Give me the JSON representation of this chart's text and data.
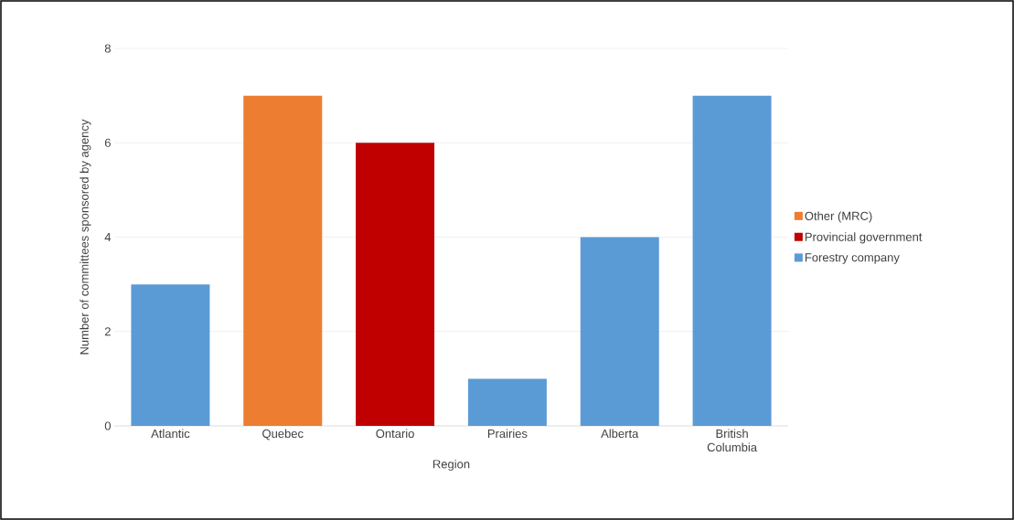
{
  "chart_data": {
    "type": "bar",
    "xlabel": "Region",
    "ylabel": "Number of committees sponsored by agency",
    "categories": [
      "Atlantic",
      "Quebec",
      "Ontario",
      "Prairies",
      "Alberta",
      "British Columbia"
    ],
    "series": [
      {
        "name": "Other (MRC)",
        "color": "#ed7d31",
        "values": [
          null,
          7,
          null,
          null,
          null,
          null
        ]
      },
      {
        "name": "Provincial government",
        "color": "#c00000",
        "values": [
          null,
          null,
          6,
          null,
          null,
          null
        ]
      },
      {
        "name": "Forestry company",
        "color": "#5b9bd5",
        "values": [
          3,
          null,
          null,
          1,
          4,
          7
        ]
      }
    ],
    "ylim": [
      0,
      8
    ],
    "yticks": [
      0,
      2,
      4,
      6,
      8
    ],
    "grid": "y",
    "legend": "right"
  }
}
